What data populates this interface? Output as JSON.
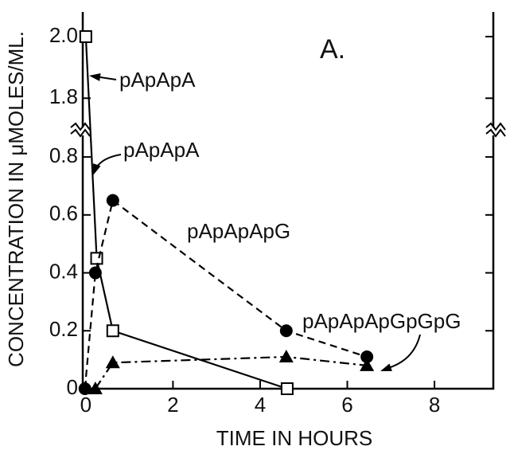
{
  "chart_data": {
    "type": "line",
    "xlabel": "TIME IN HOURS",
    "ylabel": "CONCENTRATION IN μMOLES/ML.",
    "xlim": [
      -0.07,
      9.35
    ],
    "xticks": [
      0,
      2,
      4,
      6,
      8
    ],
    "ylim": [
      0,
      2.08
    ],
    "ybreak": [
      0.88,
      1.7
    ],
    "yticks": [
      0,
      0.2,
      0.4,
      0.6,
      0.8,
      1.8,
      {
        "value": 2,
        "label": "2.0"
      }
    ],
    "annotations": [
      {
        "text": "A."
      },
      {
        "text": "pApApA"
      }
    ],
    "series": [
      {
        "name": "pApApA",
        "color": "#000000",
        "marker": "square-open",
        "linestyle": "solid",
        "x": [
          0,
          0.25,
          0.62,
          4.62
        ],
        "values": [
          2.0,
          0.45,
          0.2,
          0
        ]
      },
      {
        "name": "pApApApG",
        "color": "#000000",
        "marker": "circle",
        "linestyle": "dashed",
        "x": [
          -0.02,
          0.22,
          0.62,
          4.6,
          6.45
        ],
        "values": [
          0,
          0.4,
          0.65,
          0.2,
          0.11
        ]
      },
      {
        "name": "pApApApGpGpG",
        "color": "#000000",
        "marker": "triangle",
        "linestyle": "dashdot",
        "x": [
          0.22,
          0.62,
          4.6,
          6.45
        ],
        "values": [
          0,
          0.09,
          0.11,
          0.08
        ]
      }
    ]
  }
}
